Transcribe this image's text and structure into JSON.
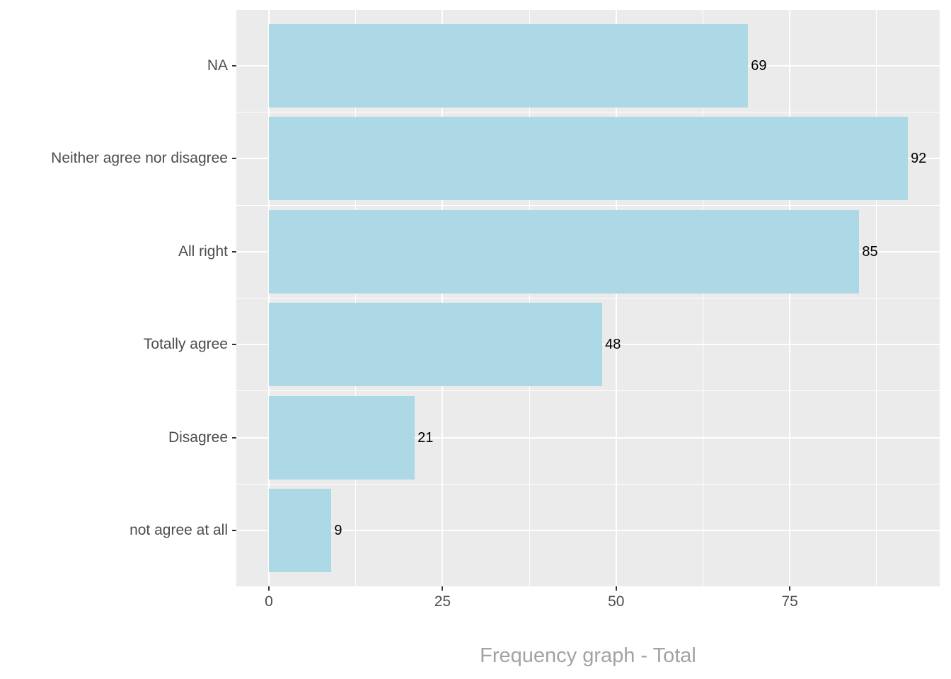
{
  "chart_data": {
    "type": "bar",
    "orientation": "horizontal",
    "title": "Frequency graph - Total",
    "title_position": "bottom-center",
    "categories": [
      "NA",
      "Neither agree nor disagree",
      "All right",
      "Totally agree",
      "Disagree",
      "not agree at all"
    ],
    "values": [
      69,
      92,
      85,
      48,
      21,
      9
    ],
    "value_labels": [
      "69",
      "92",
      "85",
      "48",
      "21",
      "9"
    ],
    "xlabel": "",
    "ylabel": "",
    "x_axis": {
      "major_ticks": [
        0,
        25,
        50,
        75
      ],
      "major_tick_labels": [
        "0",
        "25",
        "50",
        "75"
      ],
      "minor_ticks": [
        12.5,
        37.5,
        62.5,
        87.5
      ],
      "range": [
        -4.6,
        96.6
      ]
    },
    "legend": "none",
    "grid": {
      "major": true,
      "minor": true,
      "style": "white lines on gray panel"
    },
    "colors": {
      "bar_fill": "#ADD8E6",
      "panel_background": "#EBEBEB",
      "gridline": "#FFFFFF",
      "axis_text": "#4D4D4D",
      "value_label_text": "#000000",
      "title_text": "#A3A3A3",
      "tick_mark": "#333333",
      "page_background": "#FFFFFF"
    }
  }
}
